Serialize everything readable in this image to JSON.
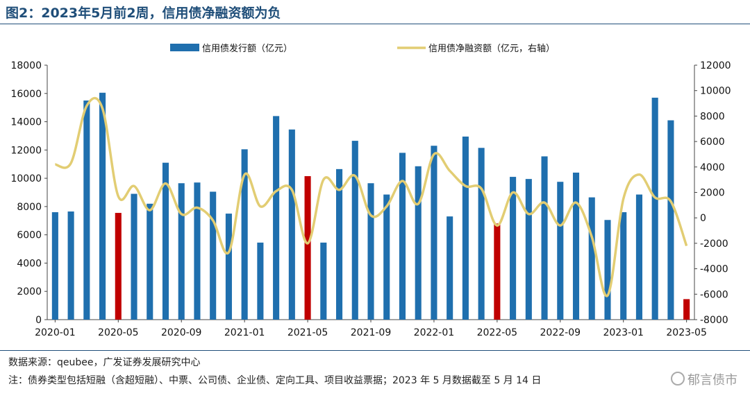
{
  "title": "图2：2023年5月前2周，信用债净融资额为负",
  "source_text": "数据来源：qeubee，广发证券发展研究中心",
  "note_text": "注：债券类型包括短融（含超短融）、中票、公司债、企业债、定向工具、项目收益票据；2023 年 5 月数据截至 5 月 14 日",
  "watermark": "郁言债市",
  "colors": {
    "bar": "#1f6fae",
    "bar_highlight": "#c00000",
    "line": "#e2cd73",
    "frame": "#1f4e79"
  },
  "chart_data": {
    "type": "bar",
    "title": "",
    "xlabel": "",
    "ylabel": "",
    "ylim": [
      0,
      18000
    ],
    "y2lim": [
      -8000,
      12000
    ],
    "legend_position": "top",
    "grid": false,
    "x": [
      "2020-01",
      "2020-02",
      "2020-03",
      "2020-04",
      "2020-05",
      "2020-06",
      "2020-07",
      "2020-08",
      "2020-09",
      "2020-10",
      "2020-11",
      "2020-12",
      "2021-01",
      "2021-02",
      "2021-03",
      "2021-04",
      "2021-05",
      "2021-06",
      "2021-07",
      "2021-08",
      "2021-09",
      "2021-10",
      "2021-11",
      "2021-12",
      "2022-01",
      "2022-02",
      "2022-03",
      "2022-04",
      "2022-05",
      "2022-06",
      "2022-07",
      "2022-08",
      "2022-09",
      "2022-10",
      "2022-11",
      "2022-12",
      "2023-01",
      "2023-02",
      "2023-03",
      "2023-04",
      "2023-05"
    ],
    "x_tick_labels": [
      "2020-01",
      "2020-05",
      "2020-09",
      "2021-01",
      "2021-05",
      "2021-09",
      "2022-01",
      "2022-05",
      "2022-09",
      "2023-01",
      "2023-05"
    ],
    "y_ticks": [
      0,
      2000,
      4000,
      6000,
      8000,
      10000,
      12000,
      14000,
      16000,
      18000
    ],
    "y2_ticks": [
      -8000,
      -6000,
      -4000,
      -2000,
      0,
      2000,
      4000,
      6000,
      8000,
      10000,
      12000
    ],
    "highlight": [
      "2020-05",
      "2021-05",
      "2022-05",
      "2023-05"
    ],
    "series": [
      {
        "name": "信用债发行额（亿元）",
        "type": "bar",
        "axis": "left",
        "values": [
          7600,
          7650,
          15500,
          16050,
          7550,
          8900,
          8200,
          11100,
          9650,
          9700,
          9050,
          7500,
          12050,
          5450,
          14400,
          13450,
          10150,
          5450,
          10650,
          12650,
          9650,
          8850,
          11800,
          10850,
          12300,
          7300,
          12950,
          12150,
          6800,
          10100,
          9950,
          11550,
          9750,
          10400,
          8650,
          7050,
          7600,
          8850,
          15700,
          14100,
          1450
        ]
      },
      {
        "name": "信用债净融资额（亿元，右轴）",
        "type": "line",
        "axis": "right",
        "values": [
          4200,
          4300,
          8800,
          8600,
          1700,
          2500,
          600,
          2700,
          300,
          800,
          -200,
          -2700,
          3400,
          900,
          2100,
          2200,
          -2000,
          3000,
          2200,
          3300,
          200,
          900,
          2900,
          1100,
          5000,
          3700,
          2500,
          2300,
          -600,
          2000,
          300,
          1200,
          -600,
          1200,
          -1500,
          -6100,
          1500,
          3400,
          1600,
          1300,
          -2200
        ]
      }
    ]
  }
}
